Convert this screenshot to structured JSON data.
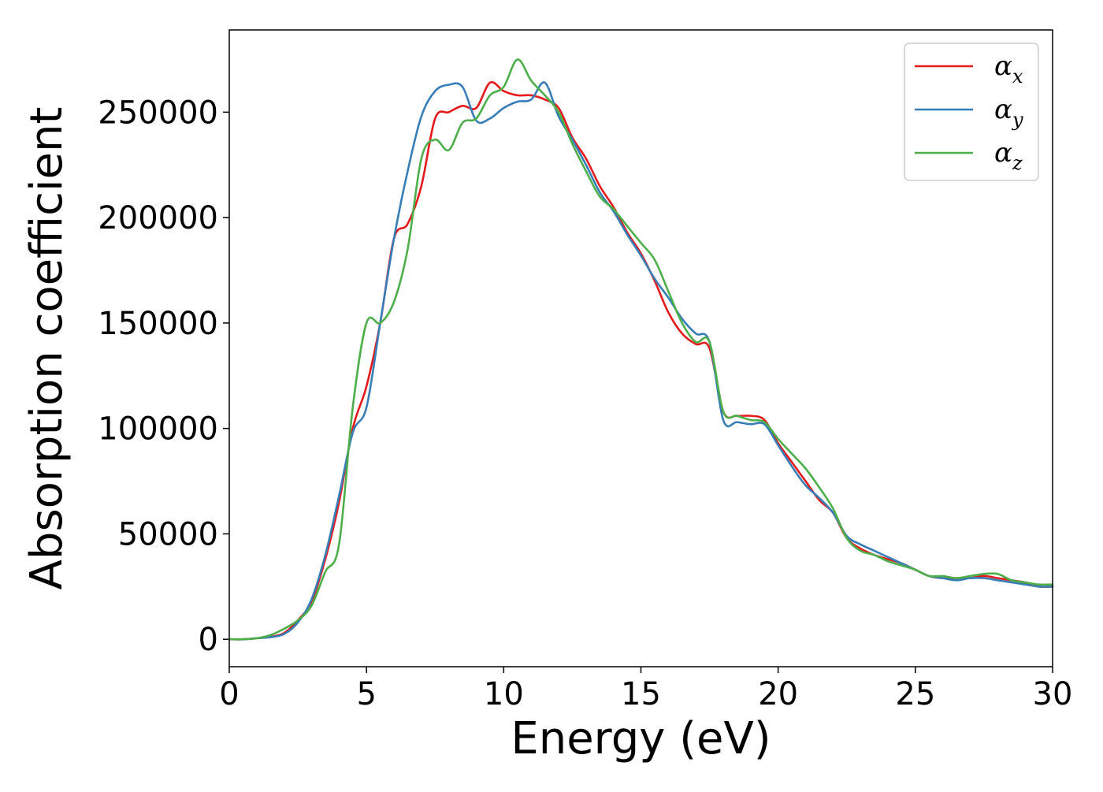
{
  "chart_data": {
    "type": "line",
    "title": "",
    "xlabel": "Energy (eV)",
    "ylabel": "Absorption coefficient",
    "xlim": [
      0,
      30
    ],
    "ylim": [
      -13000,
      289000
    ],
    "xticks": [
      0,
      5,
      10,
      15,
      20,
      25,
      30
    ],
    "xtick_labels": [
      "0",
      "5",
      "10",
      "15",
      "20",
      "25",
      "30"
    ],
    "yticks": [
      0,
      50000,
      100000,
      150000,
      200000,
      250000
    ],
    "ytick_labels": [
      "0",
      "50000",
      "100000",
      "150000",
      "200000",
      "250000"
    ],
    "grid": false,
    "legend_position": "top-right",
    "legend_symbol": "α",
    "series": [
      {
        "name": "α_x",
        "label_base": "α",
        "label_sub": "x",
        "color": "#e41a1c",
        "x": [
          0,
          0.5,
          1.0,
          1.5,
          2.0,
          2.5,
          3.0,
          3.5,
          4.0,
          4.5,
          5.0,
          5.5,
          6.0,
          6.5,
          7.0,
          7.5,
          8.0,
          8.5,
          9.0,
          9.5,
          10.0,
          10.5,
          11.0,
          11.5,
          12.0,
          12.5,
          13.0,
          13.5,
          14.0,
          14.5,
          15.0,
          15.5,
          16.0,
          16.5,
          17.0,
          17.5,
          18.0,
          18.5,
          19.0,
          19.5,
          20.0,
          20.5,
          21.0,
          21.5,
          22.0,
          22.5,
          23.0,
          23.5,
          24.0,
          24.5,
          25.0,
          25.5,
          26.0,
          26.5,
          27.0,
          27.5,
          28.0,
          28.5,
          29.0,
          29.5,
          30.0
        ],
        "y": [
          0,
          0,
          500,
          1200,
          3000,
          9000,
          18000,
          38000,
          65000,
          100000,
          120000,
          150000,
          190000,
          197000,
          215000,
          247000,
          250000,
          253000,
          252000,
          264000,
          260000,
          258000,
          258000,
          256000,
          252000,
          238000,
          228000,
          215000,
          205000,
          193000,
          183000,
          170000,
          155000,
          145000,
          140000,
          138000,
          108000,
          106000,
          106000,
          104000,
          93000,
          84000,
          75000,
          66000,
          60000,
          48000,
          43000,
          40000,
          38000,
          36000,
          33000,
          30000,
          29000,
          29000,
          29000,
          30000,
          29000,
          28000,
          27000,
          25000,
          25000
        ]
      },
      {
        "name": "α_y",
        "label_base": "α",
        "label_sub": "y",
        "color": "#377eb8",
        "x": [
          0,
          0.5,
          1.0,
          1.5,
          2.0,
          2.5,
          3.0,
          3.5,
          4.0,
          4.5,
          5.0,
          5.5,
          6.0,
          6.5,
          7.0,
          7.5,
          8.0,
          8.5,
          9.0,
          9.5,
          10.0,
          10.5,
          11.0,
          11.5,
          12.0,
          12.5,
          13.0,
          13.5,
          14.0,
          14.5,
          15.0,
          15.5,
          16.0,
          16.5,
          17.0,
          17.5,
          18.0,
          18.5,
          19.0,
          19.5,
          20.0,
          20.5,
          21.0,
          21.5,
          22.0,
          22.5,
          23.0,
          23.5,
          24.0,
          24.5,
          25.0,
          25.5,
          26.0,
          26.5,
          27.0,
          27.5,
          28.0,
          28.5,
          29.0,
          29.5,
          30.0
        ],
        "y": [
          0,
          0,
          500,
          1000,
          2500,
          8000,
          19000,
          40000,
          68000,
          98000,
          110000,
          150000,
          190000,
          222000,
          248000,
          260000,
          263000,
          262000,
          246000,
          247000,
          252000,
          255000,
          256000,
          264000,
          248000,
          237000,
          225000,
          212000,
          203000,
          192000,
          182000,
          171000,
          162000,
          152000,
          145000,
          141000,
          104000,
          103000,
          102000,
          102000,
          92000,
          82000,
          73000,
          67000,
          60000,
          49000,
          45000,
          42000,
          39000,
          36000,
          33000,
          30000,
          29000,
          28000,
          29000,
          29000,
          28000,
          27000,
          26000,
          25000,
          25000
        ]
      },
      {
        "name": "α_z",
        "label_base": "α",
        "label_sub": "z",
        "color": "#4daf4a",
        "x": [
          0,
          0.5,
          1.0,
          1.5,
          2.0,
          2.5,
          3.0,
          3.5,
          4.0,
          4.5,
          5.0,
          5.5,
          6.0,
          6.5,
          7.0,
          7.5,
          8.0,
          8.5,
          9.0,
          9.5,
          10.0,
          10.5,
          11.0,
          11.5,
          12.0,
          12.5,
          13.0,
          13.5,
          14.0,
          14.5,
          15.0,
          15.5,
          16.0,
          16.5,
          17.0,
          17.5,
          18.0,
          18.5,
          19.0,
          19.5,
          20.0,
          20.5,
          21.0,
          21.5,
          22.0,
          22.5,
          23.0,
          23.5,
          24.0,
          24.5,
          25.0,
          25.5,
          26.0,
          26.5,
          27.0,
          27.5,
          28.0,
          28.5,
          29.0,
          29.5,
          30.0
        ],
        "y": [
          0,
          0,
          500,
          2000,
          5000,
          9000,
          16000,
          32000,
          45000,
          110000,
          150000,
          150000,
          160000,
          185000,
          228000,
          237000,
          232000,
          245000,
          247000,
          258000,
          262000,
          275000,
          265000,
          258000,
          250000,
          235000,
          222000,
          210000,
          204000,
          196000,
          188000,
          180000,
          165000,
          150000,
          141000,
          141000,
          108000,
          106000,
          104000,
          103000,
          95000,
          88000,
          81000,
          72000,
          62000,
          48000,
          42000,
          40000,
          37000,
          35000,
          33000,
          30000,
          30000,
          29000,
          30000,
          31000,
          31000,
          28000,
          27000,
          26000,
          26000
        ]
      }
    ]
  }
}
